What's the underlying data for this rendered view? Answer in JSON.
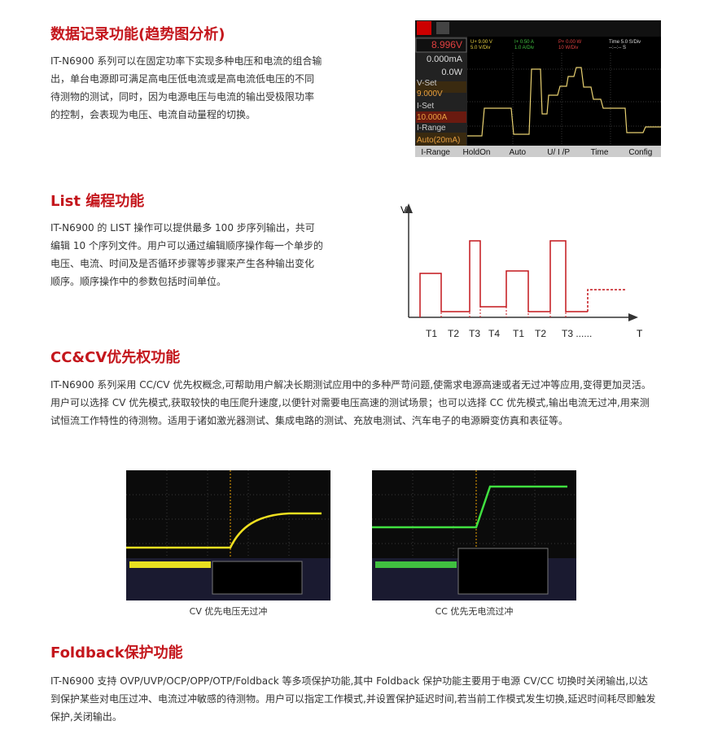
{
  "sections": [
    {
      "title": "数据记录功能(趋势图分析)",
      "text": "IT-N6900 系列可以在固定功率下实现多种电压和电流的组合输出，单台电源即可满足高电压低电流或是高电流低电压的不同待测物的测试，同时，因为电源电压与电流的输出受极限功率的控制，会表现为电压、电流自动量程的切换。"
    },
    {
      "title": "List 编程功能",
      "text": "IT-N6900 的 LIST 操作可以提供最多 100 步序列输出，共可编辑 10 个序列文件。用户可以通过编辑顺序操作每一个单步的电压、电流、时间及是否循环步骤等步骤来产生各种输出变化顺序。顺序操作中的参数包括时间单位。"
    },
    {
      "title": "CC&CV优先权功能",
      "text": "IT-N6900 系列采用 CC/CV 优先权概念,可帮助用户解决长期测试应用中的多种严苛问题,使需求电源高速或者无过冲等应用,变得更加灵活。用户可以选择 CV 优先模式,获取较快的电压爬升速度,以便针对需要电压高速的测试场景；也可以选择 CC 优先模式,输出电流无过冲,用来测试恒流工作特性的待测物。适用于诸如激光器测试、集成电路的测试、充放电测试、汽车电子的电源瞬变仿真和表征等。"
    },
    {
      "title": "Foldback保护功能",
      "text": "IT-N6900 支持 OVP/UVP/OCP/OPP/OTP/Foldback 等多项保护功能,其中 Foldback 保护功能主要用于电源 CV/CC 切换时关闭输出,以达到保护某些对电压过冲、电流过冲敏感的待测物。用户可以指定工作模式,并设置保护延迟时间,若当前工作模式发生切换,延迟时间耗尽即触发保护,关闭输出。"
    }
  ],
  "instrument": {
    "readings": [
      "8.996V",
      "0.000mA",
      "0.0W",
      "V-Set",
      "9.000V",
      "I-Set",
      "10.000A",
      "I-Range",
      "Auto(20mA)"
    ],
    "channels": [
      [
        "U+ 9.00 V",
        "5.0 V/Div"
      ],
      [
        "I+ 0.50 A",
        "1.0 A/Div"
      ],
      [
        "P+ 0.00 W",
        "10 W/Div"
      ],
      [
        "Time  5.0 S/Div",
        "--:--:-- S"
      ]
    ],
    "buttons": [
      "I-Range",
      "HoldOn",
      "Auto",
      "U/ I /P",
      "Time",
      "Config"
    ]
  },
  "list_diagram": {
    "y_axis": "V",
    "x_axis": "T",
    "labels": [
      "T1",
      "T2",
      "T3",
      "T4",
      "T1",
      "T2",
      "T3 ......"
    ]
  },
  "captions": [
    "CV 优先电压无过冲",
    "CC 优先无电流过冲"
  ]
}
